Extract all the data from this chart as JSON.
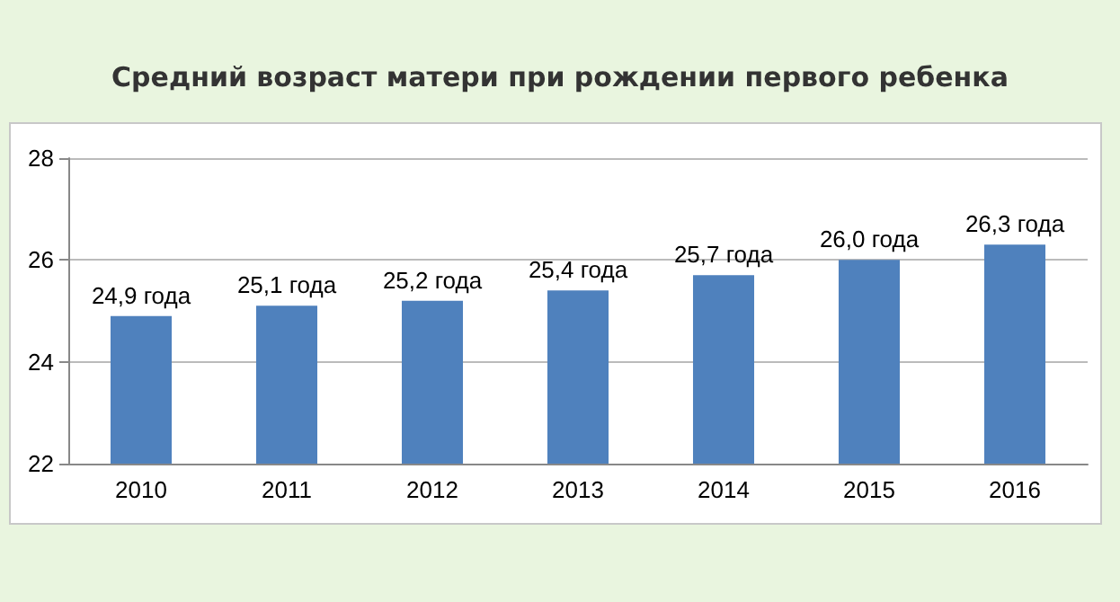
{
  "chart_data": {
    "type": "bar",
    "title": "Средний возраст матери при рождении первого ребенка",
    "categories": [
      "2010",
      "2011",
      "2012",
      "2013",
      "2014",
      "2015",
      "2016"
    ],
    "values": [
      24.9,
      25.1,
      25.2,
      25.4,
      25.7,
      26.0,
      26.3
    ],
    "value_labels": [
      "24,9 года",
      "25,1 года",
      "25,2 года",
      "25,4 года",
      "25,7 года",
      "26,0 года",
      "26,3 года"
    ],
    "color": "#4f81bd",
    "ylim": [
      22,
      28
    ],
    "yticks": [
      22,
      24,
      26,
      28
    ],
    "grid": "y"
  }
}
